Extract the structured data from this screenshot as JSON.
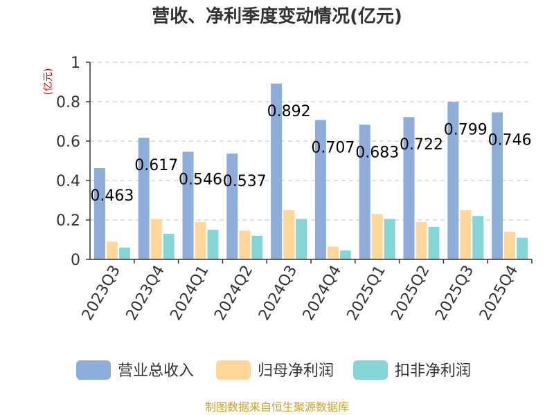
{
  "colors": {
    "revenue": "#8eadd9",
    "parent_net": "#fdd89a",
    "deducted_net": "#86d5d7",
    "grid": "#cccccc",
    "axis": "#333333"
  },
  "chart_data": {
    "type": "bar",
    "title": "营收、净利季度变动情况(亿元)",
    "unit_label": "(亿元)",
    "ylim": [
      0,
      1
    ],
    "yticks": [
      "0",
      "0.2",
      "0.4",
      "0.6",
      "0.8",
      "1"
    ],
    "grid": true,
    "legend_position": "bottom",
    "categories": [
      "2023Q3",
      "2023Q4",
      "2024Q1",
      "2024Q2",
      "2024Q3",
      "2024Q4",
      "2025Q1",
      "2025Q2",
      "2025Q3",
      "2025Q4"
    ],
    "series": [
      {
        "name": "营业总收入",
        "color_key": "revenue",
        "values": [
          0.463,
          0.617,
          0.546,
          0.537,
          0.892,
          0.707,
          0.683,
          0.722,
          0.799,
          0.746
        ],
        "labels": [
          "0.463",
          "0.617",
          "0.546",
          "0.537",
          "0.892",
          "0.707",
          "0.683",
          "0.722",
          "0.799",
          "0.746"
        ]
      },
      {
        "name": "归母净利润",
        "color_key": "parent_net",
        "values": [
          0.09,
          0.205,
          0.19,
          0.145,
          0.25,
          0.065,
          0.23,
          0.19,
          0.25,
          0.14
        ]
      },
      {
        "name": "扣非净利润",
        "color_key": "deducted_net",
        "values": [
          0.06,
          0.13,
          0.15,
          0.12,
          0.205,
          0.045,
          0.205,
          0.165,
          0.22,
          0.11
        ]
      }
    ],
    "source": "制图数据来自恒生聚源数据库"
  }
}
